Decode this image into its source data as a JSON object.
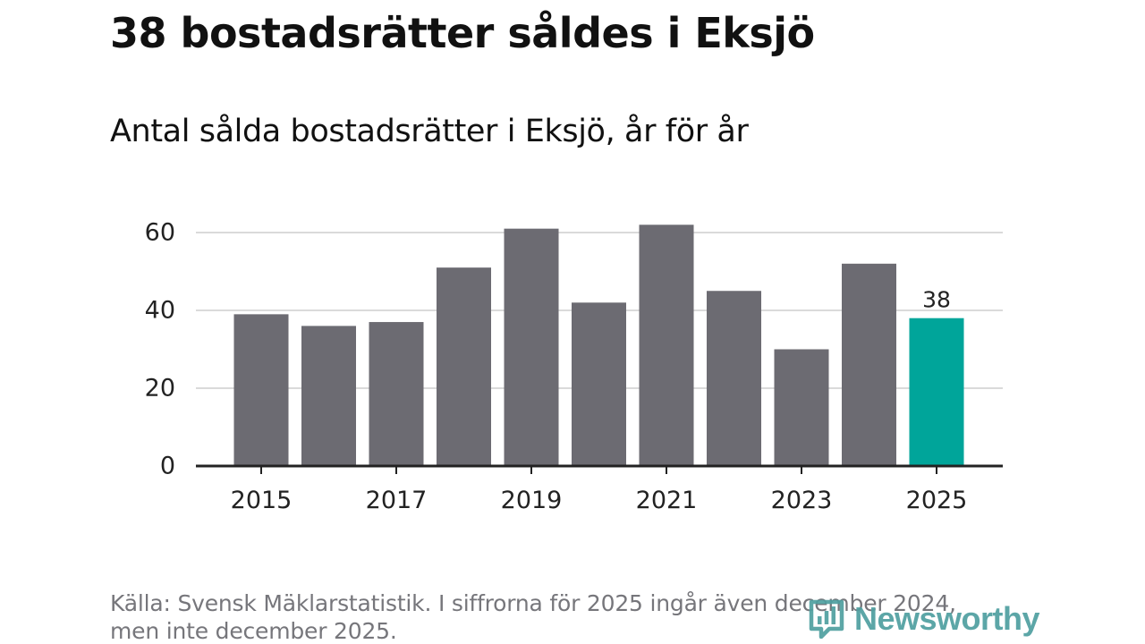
{
  "header": {
    "title": "38 bostadsrätter såldes i Eksjö",
    "subtitle": "Antal sålda bostadsrätter i Eksjö, år för år"
  },
  "chart_data": {
    "type": "bar",
    "title": "Antal sålda bostadsrätter i Eksjö, år för år",
    "xlabel": "",
    "ylabel": "",
    "categories": [
      "2015",
      "2016",
      "2017",
      "2018",
      "2019",
      "2020",
      "2021",
      "2022",
      "2023",
      "2024",
      "2025"
    ],
    "values": [
      39,
      36,
      37,
      51,
      61,
      42,
      62,
      45,
      30,
      52,
      38
    ],
    "ylim": [
      0,
      60
    ],
    "yticks": [
      "0",
      "20",
      "40",
      "60"
    ],
    "xtick_labels": [
      "2015",
      "2017",
      "2019",
      "2021",
      "2023",
      "2025"
    ],
    "grid": true,
    "highlight_index": 10,
    "data_labels": [
      {
        "category": "2025",
        "label": "38"
      }
    ],
    "colors": {
      "bar": "#6c6b72",
      "highlight": "#00a59a",
      "grid": "#dadada",
      "axis": "#222222",
      "tick_text": "#222222"
    }
  },
  "footer": {
    "source": "Källa: Svensk Mäklarstatistik. I siffrorna för 2025 ingår även december 2024, men inte december 2025.",
    "logo_text": "Newsworthy",
    "logo_icon": "newsworthy-logo-icon",
    "logo_color": "#4f9fa0"
  }
}
